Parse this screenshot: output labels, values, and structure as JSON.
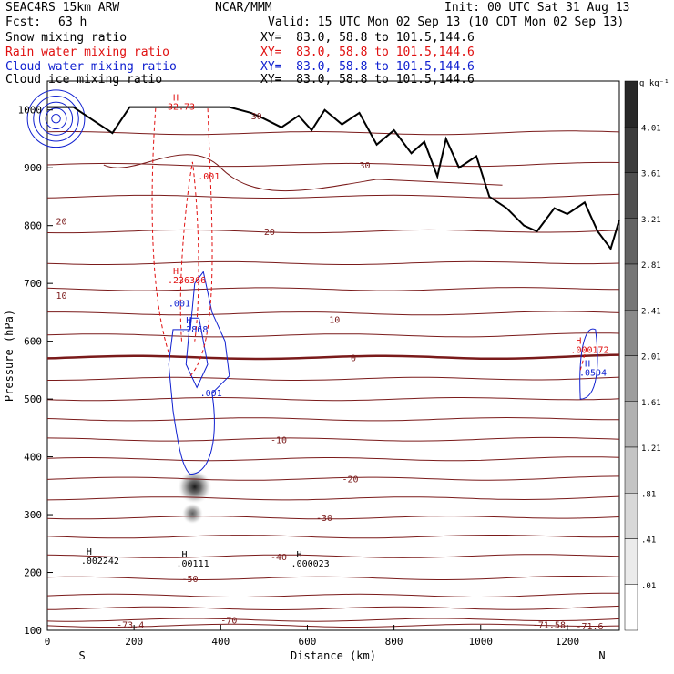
{
  "header": {
    "model": "SEAC4RS 15km ARW",
    "org": "NCAR/MMM",
    "init": "Init: 00 UTC Sat 31 Aug 13",
    "fcst_label": "Fcst:",
    "fcst_value": "63 h",
    "valid": "Valid: 15 UTC Mon 02 Sep 13 (10 CDT Mon 02 Sep 13)",
    "fields": [
      {
        "name": "Snow mixing ratio",
        "xy": "XY=  83.0, 58.8 to 101.5,144.6",
        "color": "#000000"
      },
      {
        "name": "Rain water mixing ratio",
        "xy": "XY=  83.0, 58.8 to 101.5,144.6",
        "color": "#e01010"
      },
      {
        "name": "Cloud water mixing ratio",
        "xy": "XY=  83.0, 58.8 to 101.5,144.6",
        "color": "#1020d0"
      },
      {
        "name": "Cloud ice mixing ratio",
        "xy": "XY=  83.0, 58.8 to 101.5,144.6",
        "color": "#000000"
      }
    ]
  },
  "chart_data": {
    "type": "cross-section",
    "xlabel": "Distance (km)",
    "ylabel": "Pressure (hPa)",
    "xlim": [
      0,
      1320
    ],
    "ylim": [
      1050,
      100
    ],
    "x_ticks": [
      0,
      200,
      400,
      600,
      800,
      1000,
      1200
    ],
    "y_ticks": [
      100,
      200,
      300,
      400,
      500,
      600,
      700,
      800,
      900,
      1000
    ],
    "end_labels": {
      "left": "S",
      "right": "N"
    },
    "colorbar": {
      "unit": "g kg⁻¹",
      "levels": [
        "4.01",
        "3.61",
        "3.21",
        "2.81",
        "2.41",
        "2.01",
        "1.61",
        "1.21",
        ".81",
        ".41",
        ".01"
      ]
    },
    "temperature_contours": [
      {
        "label": "-73.4",
        "p": 110
      },
      {
        "label": "-70",
        "p": 118
      },
      {
        "label": "-71.58",
        "p": 110
      },
      {
        "label": "-71.6",
        "p": 108
      },
      {
        "label": "-50",
        "p": 190
      },
      {
        "label": "-40",
        "p": 228
      },
      {
        "label": "-30",
        "p": 295
      },
      {
        "label": "-20",
        "p": 362
      },
      {
        "label": "-10",
        "p": 430
      },
      {
        "label": "0",
        "p": 572
      },
      {
        "label": "10",
        "p": 638
      },
      {
        "label": "10",
        "p": 680
      },
      {
        "label": "20",
        "p": 790
      },
      {
        "label": "20",
        "p": 808
      },
      {
        "label": "30",
        "p": 905
      },
      {
        "label": "30",
        "p": 990
      }
    ],
    "annotations": [
      {
        "text": "H",
        "value": ".002242",
        "x": 90,
        "p": 215,
        "color": "#000000"
      },
      {
        "text": "H",
        "value": ".00111",
        "x": 310,
        "p": 210,
        "color": "#000000"
      },
      {
        "text": "H",
        "value": ".000023",
        "x": 575,
        "p": 210,
        "color": "#000000"
      },
      {
        "text": "",
        "value": ".001",
        "x": 365,
        "p": 505,
        "color": "#1020d0"
      },
      {
        "text": "",
        "value": ".001",
        "x": 292,
        "p": 660,
        "color": "#1020d0"
      },
      {
        "text": "H",
        "value": ".2868",
        "x": 320,
        "p": 615,
        "color": "#1020d0"
      },
      {
        "text": "H",
        "value": ".236366",
        "x": 290,
        "p": 700,
        "color": "#e01010"
      },
      {
        "text": "",
        "value": ".001",
        "x": 360,
        "p": 880,
        "color": "#e01010"
      },
      {
        "text": "H",
        "value": "32.73",
        "x": 290,
        "p": 1000,
        "color": "#e01010"
      },
      {
        "text": "H",
        "value": ".0594",
        "x": 1240,
        "p": 540,
        "color": "#1020d0"
      },
      {
        "text": "H",
        "value": ".000172",
        "x": 1220,
        "p": 580,
        "color": "#e01010"
      }
    ]
  }
}
